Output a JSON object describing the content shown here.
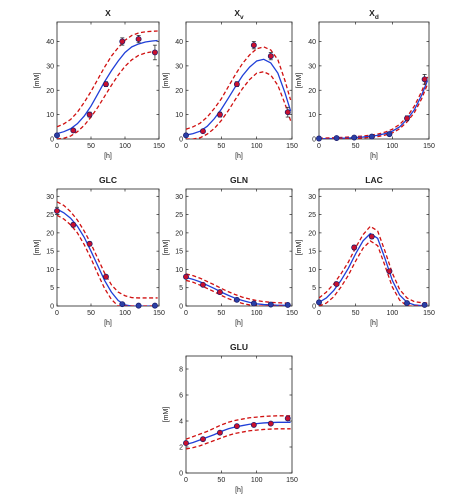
{
  "chart_data": [
    {
      "id": "X",
      "type": "line",
      "title": "X",
      "title_sub": "",
      "xlabel": "[h]",
      "ylabel": "[mM]",
      "xlim": [
        0,
        150
      ],
      "ylim": [
        0,
        48
      ],
      "xticks": [
        0,
        50,
        100,
        150
      ],
      "yticks": [
        0,
        10,
        20,
        30,
        40
      ],
      "grid": false,
      "legend": "none",
      "series": [
        {
          "role": "upper",
          "x": [
            0,
            10,
            20,
            30,
            40,
            50,
            60,
            70,
            80,
            90,
            100,
            110,
            120,
            130,
            140,
            148
          ],
          "y": [
            5,
            6.2,
            8,
            11,
            15,
            19.5,
            24.5,
            29.5,
            34,
            37.5,
            40.5,
            42.5,
            43.5,
            44,
            44.2,
            44.3
          ]
        },
        {
          "role": "fit",
          "x": [
            0,
            10,
            20,
            30,
            40,
            50,
            60,
            70,
            80,
            90,
            100,
            110,
            120,
            130,
            140,
            148
          ],
          "y": [
            2.2,
            3,
            4.2,
            6.3,
            9.4,
            13.5,
            18.5,
            23.5,
            28,
            32,
            35.5,
            37.8,
            39,
            39.8,
            40.2,
            40.4
          ]
        },
        {
          "role": "lower",
          "x": [
            0,
            10,
            20,
            30,
            40,
            50,
            60,
            70,
            80,
            90,
            100,
            110,
            120,
            130,
            140,
            148
          ],
          "y": [
            0,
            0.3,
            1.2,
            3,
            5.6,
            9,
            13,
            17.5,
            22,
            26.2,
            29.8,
            32.5,
            34.3,
            35.3,
            35.8,
            36
          ]
        },
        {
          "role": "measured",
          "x": [
            0,
            24,
            48,
            72,
            96,
            120,
            144
          ],
          "y": [
            1.5,
            3.5,
            10,
            22.5,
            40,
            41,
            35.5
          ],
          "err": [
            0.5,
            0.5,
            1,
            1,
            1.5,
            1.5,
            3
          ]
        }
      ]
    },
    {
      "id": "Xv",
      "type": "line",
      "title": "X",
      "title_sub": "v",
      "xlabel": "[h]",
      "ylabel": "[mM]",
      "xlim": [
        0,
        150
      ],
      "ylim": [
        0,
        48
      ],
      "xticks": [
        0,
        50,
        100,
        150
      ],
      "yticks": [
        0,
        10,
        20,
        30,
        40
      ],
      "grid": false,
      "legend": "none",
      "series": [
        {
          "role": "upper",
          "x": [
            0,
            10,
            20,
            30,
            40,
            50,
            60,
            70,
            80,
            90,
            100,
            110,
            120,
            130,
            140,
            148
          ],
          "y": [
            4,
            5,
            6.5,
            9,
            12.5,
            16.5,
            21.5,
            26.5,
            31,
            34.5,
            37,
            37.8,
            36.5,
            32.5,
            24,
            16
          ]
        },
        {
          "role": "fit",
          "x": [
            0,
            10,
            20,
            30,
            40,
            50,
            60,
            70,
            80,
            90,
            100,
            110,
            120,
            130,
            140,
            148
          ],
          "y": [
            1.6,
            2.2,
            3.2,
            5.2,
            8.3,
            12.2,
            16.8,
            21.5,
            26,
            29.5,
            32,
            32.7,
            31.2,
            27,
            19,
            11.5
          ]
        },
        {
          "role": "lower",
          "x": [
            0,
            10,
            20,
            30,
            40,
            50,
            60,
            70,
            80,
            90,
            100,
            110,
            120,
            130,
            140,
            148
          ],
          "y": [
            0,
            0,
            0.5,
            2,
            4.3,
            7.6,
            11.7,
            16.3,
            20.7,
            24.4,
            27,
            27.6,
            26.2,
            22,
            14.5,
            7.5
          ]
        },
        {
          "role": "measured",
          "x": [
            0,
            24,
            48,
            72,
            96,
            120,
            144
          ],
          "y": [
            1.5,
            3.2,
            10,
            22.5,
            38.5,
            34,
            11
          ],
          "err": [
            0.5,
            0.5,
            1,
            1,
            1.5,
            1.5,
            2
          ]
        }
      ]
    },
    {
      "id": "Xd",
      "type": "line",
      "title": "X",
      "title_sub": "d",
      "xlabel": "[h]",
      "ylabel": "[mM]",
      "xlim": [
        0,
        150
      ],
      "ylim": [
        0,
        48
      ],
      "xticks": [
        0,
        50,
        100,
        150
      ],
      "yticks": [
        0,
        10,
        20,
        30,
        40
      ],
      "grid": false,
      "legend": "none",
      "series": [
        {
          "role": "upper",
          "x": [
            0,
            20,
            40,
            60,
            80,
            90,
            100,
            110,
            120,
            130,
            140,
            148
          ],
          "y": [
            0.3,
            0.5,
            0.8,
            1.2,
            2,
            2.8,
            4,
            6,
            9,
            13.5,
            19.5,
            25.5
          ]
        },
        {
          "role": "fit",
          "x": [
            0,
            20,
            40,
            60,
            80,
            90,
            100,
            110,
            120,
            130,
            140,
            148
          ],
          "y": [
            0.1,
            0.2,
            0.4,
            0.8,
            1.5,
            2.2,
            3.2,
            5,
            8,
            12,
            18,
            24
          ]
        },
        {
          "role": "lower",
          "x": [
            0,
            20,
            40,
            60,
            80,
            90,
            100,
            110,
            120,
            130,
            140,
            148
          ],
          "y": [
            0,
            0,
            0.1,
            0.4,
            1,
            1.6,
            2.5,
            4.2,
            7,
            10.8,
            16.5,
            22.5
          ]
        },
        {
          "role": "measured",
          "x": [
            0,
            24,
            48,
            72,
            96,
            120,
            144
          ],
          "y": [
            0.2,
            0.4,
            0.6,
            1,
            2,
            8.5,
            24.5
          ],
          "err": [
            0.2,
            0.2,
            0.3,
            0.3,
            0.5,
            1,
            2
          ]
        }
      ]
    },
    {
      "id": "GLC",
      "type": "line",
      "title": "GLC",
      "title_sub": "",
      "xlabel": "[h]",
      "ylabel": "[mM]",
      "xlim": [
        0,
        150
      ],
      "ylim": [
        0,
        32
      ],
      "xticks": [
        0,
        50,
        100,
        150
      ],
      "yticks": [
        0,
        5,
        10,
        15,
        20,
        25,
        30
      ],
      "grid": false,
      "legend": "none",
      "series": [
        {
          "role": "upper",
          "x": [
            0,
            10,
            20,
            30,
            40,
            50,
            60,
            70,
            80,
            90,
            100,
            110,
            120,
            130,
            140,
            148
          ],
          "y": [
            28.5,
            27.5,
            25.8,
            23.5,
            20.5,
            17,
            13,
            9,
            5.8,
            3.8,
            2.8,
            2.3,
            2.2,
            2.2,
            2.2,
            2.2
          ]
        },
        {
          "role": "fit",
          "x": [
            0,
            10,
            20,
            30,
            40,
            50,
            60,
            70,
            80,
            90,
            100,
            110,
            120,
            130,
            140,
            148
          ],
          "y": [
            26.5,
            25.5,
            24,
            21.8,
            18.8,
            15,
            11,
            7,
            3.8,
            1.5,
            0.3,
            0,
            0,
            0,
            0,
            0
          ]
        },
        {
          "role": "lower",
          "x": [
            0,
            10,
            20,
            30,
            40,
            50,
            60,
            70,
            80,
            90,
            100,
            110,
            120,
            130,
            140,
            148
          ],
          "y": [
            24.8,
            23.8,
            22.2,
            20,
            16.8,
            13,
            8.8,
            4.8,
            1.8,
            0,
            0,
            0,
            0,
            0,
            0,
            0
          ]
        },
        {
          "role": "measured",
          "x": [
            0,
            24,
            48,
            72,
            96,
            120,
            144
          ],
          "y": [
            26,
            22.2,
            17,
            8,
            0.5,
            0.1,
            0.1
          ],
          "err": [
            1,
            0.6,
            0.6,
            0.5,
            0.2,
            0.1,
            0.1
          ]
        }
      ]
    },
    {
      "id": "GLN",
      "type": "line",
      "title": "GLN",
      "title_sub": "",
      "xlabel": "[h]",
      "ylabel": "[mM]",
      "xlim": [
        0,
        150
      ],
      "ylim": [
        0,
        32
      ],
      "xticks": [
        0,
        50,
        100,
        150
      ],
      "yticks": [
        0,
        5,
        10,
        15,
        20,
        25,
        30
      ],
      "grid": false,
      "legend": "none",
      "series": [
        {
          "role": "upper",
          "x": [
            0,
            10,
            20,
            30,
            40,
            50,
            60,
            70,
            80,
            90,
            100,
            110,
            120,
            130,
            140,
            148
          ],
          "y": [
            8.8,
            8.3,
            7.6,
            6.7,
            5.8,
            4.8,
            3.9,
            3.1,
            2.4,
            1.9,
            1.5,
            1.2,
            1,
            0.9,
            0.8,
            0.8
          ]
        },
        {
          "role": "fit",
          "x": [
            0,
            10,
            20,
            30,
            40,
            50,
            60,
            70,
            80,
            90,
            100,
            110,
            120,
            130,
            140,
            148
          ],
          "y": [
            7.8,
            7.3,
            6.6,
            5.7,
            4.8,
            3.8,
            2.9,
            2.1,
            1.5,
            1,
            0.6,
            0.4,
            0.3,
            0.2,
            0.2,
            0.2
          ]
        },
        {
          "role": "lower",
          "x": [
            0,
            10,
            20,
            30,
            40,
            50,
            60,
            70,
            80,
            90,
            100,
            110,
            120,
            130,
            140,
            148
          ],
          "y": [
            7,
            6.5,
            5.7,
            4.8,
            3.9,
            2.9,
            2,
            1.3,
            0.7,
            0.3,
            0,
            0,
            0,
            0,
            0,
            0
          ]
        },
        {
          "role": "measured",
          "x": [
            0,
            24,
            48,
            72,
            96,
            120,
            144
          ],
          "y": [
            8,
            5.8,
            3.8,
            1.7,
            0.7,
            0.4,
            0.3
          ],
          "err": [
            0.3,
            0.3,
            0.3,
            0.2,
            0.2,
            0.1,
            0.1
          ]
        }
      ]
    },
    {
      "id": "LAC",
      "type": "line",
      "title": "LAC",
      "title_sub": "",
      "xlabel": "[h]",
      "ylabel": "[mM]",
      "xlim": [
        0,
        150
      ],
      "ylim": [
        0,
        32
      ],
      "xticks": [
        0,
        50,
        100,
        150
      ],
      "yticks": [
        0,
        5,
        10,
        15,
        20,
        25,
        30
      ],
      "grid": false,
      "legend": "none",
      "series": [
        {
          "role": "upper",
          "x": [
            0,
            10,
            20,
            30,
            40,
            50,
            60,
            70,
            80,
            90,
            100,
            110,
            120,
            130,
            140,
            148
          ],
          "y": [
            2.2,
            3.8,
            6,
            8.8,
            12,
            16,
            19.5,
            21.8,
            20.5,
            15,
            9,
            4.5,
            2.2,
            1.2,
            0.9,
            0.8
          ]
        },
        {
          "role": "fit",
          "x": [
            0,
            10,
            20,
            30,
            40,
            50,
            60,
            70,
            80,
            90,
            100,
            110,
            120,
            130,
            140,
            148
          ],
          "y": [
            1,
            2.2,
            4.2,
            7,
            10.3,
            14.3,
            17.8,
            19.8,
            18.5,
            13,
            7,
            3,
            1,
            0.3,
            0.1,
            0
          ]
        },
        {
          "role": "lower",
          "x": [
            0,
            10,
            20,
            30,
            40,
            50,
            60,
            70,
            80,
            90,
            100,
            110,
            120,
            130,
            140,
            148
          ],
          "y": [
            0,
            0.8,
            2.5,
            5.2,
            8.4,
            12.3,
            15.8,
            17.8,
            16.5,
            11,
            5.2,
            1.6,
            0,
            0,
            0,
            0
          ]
        },
        {
          "role": "measured",
          "x": [
            0,
            24,
            48,
            72,
            96,
            120,
            144
          ],
          "y": [
            1,
            6,
            16,
            19,
            9.5,
            0.8,
            0.3
          ],
          "err": [
            0.3,
            0.4,
            0.6,
            0.6,
            0.5,
            0.2,
            0.1
          ]
        }
      ]
    },
    {
      "id": "GLU",
      "type": "line",
      "title": "GLU",
      "title_sub": "",
      "xlabel": "[h]",
      "ylabel": "[mM]",
      "xlim": [
        0,
        150
      ],
      "ylim": [
        0,
        9
      ],
      "xticks": [
        0,
        50,
        100,
        150
      ],
      "yticks": [
        0,
        2,
        4,
        6,
        8
      ],
      "grid": false,
      "legend": "none",
      "series": [
        {
          "role": "upper",
          "x": [
            0,
            10,
            20,
            30,
            40,
            50,
            60,
            70,
            80,
            90,
            100,
            110,
            120,
            130,
            140,
            148
          ],
          "y": [
            2.6,
            2.8,
            3,
            3.2,
            3.45,
            3.7,
            3.9,
            4.05,
            4.15,
            4.25,
            4.3,
            4.35,
            4.38,
            4.4,
            4.4,
            4.4
          ]
        },
        {
          "role": "fit",
          "x": [
            0,
            10,
            20,
            30,
            40,
            50,
            60,
            70,
            80,
            90,
            100,
            110,
            120,
            130,
            140,
            148
          ],
          "y": [
            2.2,
            2.35,
            2.55,
            2.75,
            2.95,
            3.2,
            3.4,
            3.55,
            3.65,
            3.75,
            3.8,
            3.85,
            3.88,
            3.9,
            3.9,
            3.9
          ]
        },
        {
          "role": "lower",
          "x": [
            0,
            10,
            20,
            30,
            40,
            50,
            60,
            70,
            80,
            90,
            100,
            110,
            120,
            130,
            140,
            148
          ],
          "y": [
            1.85,
            1.95,
            2.1,
            2.3,
            2.5,
            2.7,
            2.9,
            3.05,
            3.15,
            3.25,
            3.3,
            3.35,
            3.38,
            3.4,
            3.4,
            3.4
          ]
        },
        {
          "role": "measured",
          "x": [
            0,
            24,
            48,
            72,
            96,
            120,
            144
          ],
          "y": [
            2.3,
            2.6,
            3.1,
            3.6,
            3.7,
            3.8,
            4.2
          ],
          "err": [
            0.1,
            0.1,
            0.1,
            0.1,
            0.1,
            0.1,
            0.15
          ]
        }
      ]
    }
  ],
  "colors": {
    "fit": "#1f3fd8",
    "band": "#d01010",
    "marker_fill": "#c8102e",
    "marker_fill_low": "#2a3fa6",
    "marker_edge": "#1a1a6a",
    "axis": "#222222"
  }
}
